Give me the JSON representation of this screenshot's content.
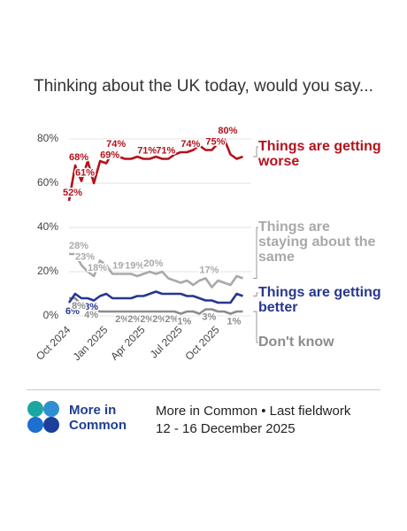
{
  "chart_data": {
    "type": "line",
    "title": "Thinking about the UK today, would you say...",
    "categories": [
      "Oct 2024",
      null,
      null,
      null,
      null,
      null,
      "Jan 2025",
      null,
      null,
      null,
      null,
      null,
      "Apr 2025",
      null,
      null,
      null,
      null,
      null,
      "Jul 2025",
      null,
      null,
      null,
      null,
      null,
      "Oct 2025",
      null,
      null,
      null,
      null
    ],
    "ylim": [
      0,
      80
    ],
    "yticks": [
      {
        "value": 0,
        "label": "0%"
      },
      {
        "value": 20,
        "label": "20%"
      },
      {
        "value": 40,
        "label": "40%"
      },
      {
        "value": 60,
        "label": "60%"
      },
      {
        "value": 80,
        "label": "80%"
      }
    ],
    "grid": true,
    "series": [
      {
        "name": "Things are getting worse",
        "color": "#b3121c",
        "values": [
          52,
          68,
          61,
          70,
          60,
          70,
          69,
          74,
          72,
          71,
          71,
          72,
          71,
          71,
          72,
          71,
          71,
          73,
          74,
          74,
          75,
          77,
          75,
          75,
          78,
          80,
          73,
          71,
          72
        ],
        "value_labels": [
          "52%",
          "68%",
          "61%",
          null,
          null,
          null,
          "69%",
          "74%",
          null,
          null,
          null,
          null,
          "71%",
          null,
          null,
          "71%",
          null,
          null,
          null,
          "74%",
          null,
          null,
          null,
          "75%",
          null,
          "80%",
          null,
          null,
          null
        ]
      },
      {
        "name": "Things are staying about the same",
        "color": "#a9a9a9",
        "values": [
          28,
          28,
          23,
          20,
          18,
          25,
          23,
          19,
          19,
          19,
          19,
          18,
          19,
          20,
          19,
          20,
          17,
          16,
          15,
          16,
          14,
          16,
          17,
          13,
          16,
          15,
          14,
          18,
          17
        ],
        "value_labels": [
          null,
          "28%",
          "23%",
          null,
          "18%",
          null,
          null,
          null,
          "19%",
          null,
          "19%",
          null,
          null,
          "20%",
          null,
          null,
          null,
          null,
          null,
          null,
          null,
          null,
          "17%",
          null,
          null,
          null,
          null,
          null,
          null
        ]
      },
      {
        "name": "Things are getting better",
        "color": "#27378f",
        "values": [
          6,
          10,
          8,
          8,
          7,
          9,
          10,
          8,
          8,
          8,
          8,
          9,
          9,
          10,
          11,
          10,
          10,
          10,
          10,
          9,
          9,
          8,
          7,
          7,
          6,
          6,
          6,
          10,
          9
        ],
        "value_labels": [
          "6%",
          null,
          null,
          "8%",
          null,
          null,
          null,
          null,
          null,
          null,
          null,
          null,
          null,
          null,
          null,
          null,
          null,
          null,
          null,
          null,
          null,
          null,
          null,
          null,
          null,
          null,
          null,
          null,
          null
        ]
      },
      {
        "name": "Don't know",
        "color": "#8c8c8c",
        "values": [
          8,
          8,
          5,
          4,
          3,
          2,
          2,
          2,
          2,
          2,
          2,
          2,
          2,
          2,
          2,
          2,
          2,
          2,
          1,
          2,
          2,
          1,
          3,
          3,
          2,
          2,
          1,
          2,
          2
        ],
        "value_labels": [
          null,
          "8%",
          null,
          "4%",
          null,
          null,
          null,
          null,
          "2%",
          null,
          "2%",
          null,
          "2%",
          null,
          "2%",
          null,
          "2%",
          null,
          "1%",
          null,
          null,
          null,
          "3%",
          null,
          null,
          null,
          "1%",
          null,
          null
        ]
      }
    ]
  },
  "footer": {
    "logo_text": "More in Common",
    "source": "More in Common • Last fieldwork",
    "dates": "12 - 16 December 2025"
  }
}
